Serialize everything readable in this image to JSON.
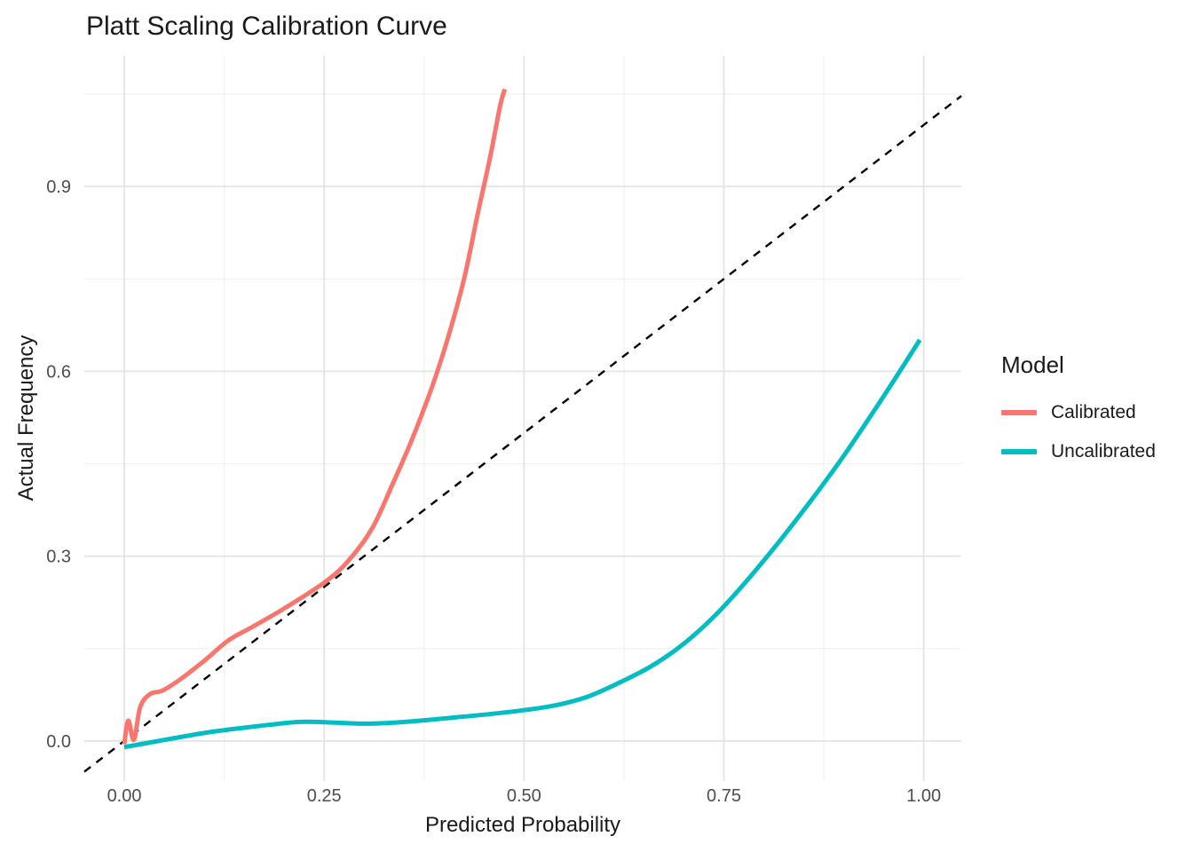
{
  "chart_data": {
    "type": "line",
    "title": "Platt Scaling Calibration Curve",
    "xlabel": "Predicted Probability",
    "ylabel": "Actual Frequency",
    "legend_title": "Model",
    "legend_position": "right",
    "grid": true,
    "background": "#ffffff",
    "grid_major_color": "#e4e4e4",
    "grid_minor_color": "#efefef",
    "tick_label_color": "#4d4d4d",
    "text_color": "#1a1a1a",
    "xlim": [
      -0.05,
      1.047
    ],
    "ylim": [
      -0.065,
      1.112
    ],
    "x_ticks": {
      "values": [
        0,
        0.25,
        0.5,
        0.75,
        1.0
      ],
      "labels": [
        "0.00",
        "0.25",
        "0.50",
        "0.75",
        "1.00"
      ]
    },
    "y_ticks": {
      "values": [
        0,
        0.3,
        0.6,
        0.9
      ],
      "labels": [
        "0.0",
        "0.3",
        "0.6",
        "0.9"
      ]
    },
    "x_minor": [
      0.125,
      0.375,
      0.625,
      0.875
    ],
    "y_minor": [
      0.15,
      0.45,
      0.75,
      1.05
    ],
    "reference_line": {
      "name": "identity",
      "style": "dashed",
      "color": "#000000",
      "from": [
        -0.05,
        -0.05
      ],
      "to": [
        1.047,
        1.047
      ]
    },
    "series": [
      {
        "name": "Calibrated",
        "color": "#F8766D",
        "points": [
          [
            0.0,
            -0.005
          ],
          [
            0.005,
            0.033
          ],
          [
            0.012,
            0.002
          ],
          [
            0.02,
            0.055
          ],
          [
            0.032,
            0.076
          ],
          [
            0.048,
            0.082
          ],
          [
            0.07,
            0.1
          ],
          [
            0.1,
            0.13
          ],
          [
            0.13,
            0.163
          ],
          [
            0.16,
            0.185
          ],
          [
            0.2,
            0.215
          ],
          [
            0.25,
            0.257
          ],
          [
            0.28,
            0.292
          ],
          [
            0.31,
            0.345
          ],
          [
            0.335,
            0.415
          ],
          [
            0.36,
            0.49
          ],
          [
            0.385,
            0.575
          ],
          [
            0.405,
            0.655
          ],
          [
            0.425,
            0.75
          ],
          [
            0.442,
            0.855
          ],
          [
            0.458,
            0.95
          ],
          [
            0.47,
            1.03
          ],
          [
            0.476,
            1.058
          ]
        ]
      },
      {
        "name": "Uncalibrated",
        "color": "#00BCC3",
        "points": [
          [
            0.0,
            -0.01
          ],
          [
            0.03,
            -0.003
          ],
          [
            0.06,
            0.004
          ],
          [
            0.1,
            0.013
          ],
          [
            0.14,
            0.02
          ],
          [
            0.18,
            0.026
          ],
          [
            0.22,
            0.031
          ],
          [
            0.26,
            0.03
          ],
          [
            0.3,
            0.028
          ],
          [
            0.34,
            0.03
          ],
          [
            0.38,
            0.034
          ],
          [
            0.42,
            0.039
          ],
          [
            0.46,
            0.044
          ],
          [
            0.5,
            0.05
          ],
          [
            0.54,
            0.058
          ],
          [
            0.58,
            0.072
          ],
          [
            0.62,
            0.095
          ],
          [
            0.66,
            0.122
          ],
          [
            0.7,
            0.158
          ],
          [
            0.74,
            0.205
          ],
          [
            0.78,
            0.262
          ],
          [
            0.82,
            0.325
          ],
          [
            0.86,
            0.392
          ],
          [
            0.9,
            0.463
          ],
          [
            0.94,
            0.54
          ],
          [
            0.97,
            0.6
          ],
          [
            0.995,
            0.651
          ]
        ]
      }
    ]
  }
}
